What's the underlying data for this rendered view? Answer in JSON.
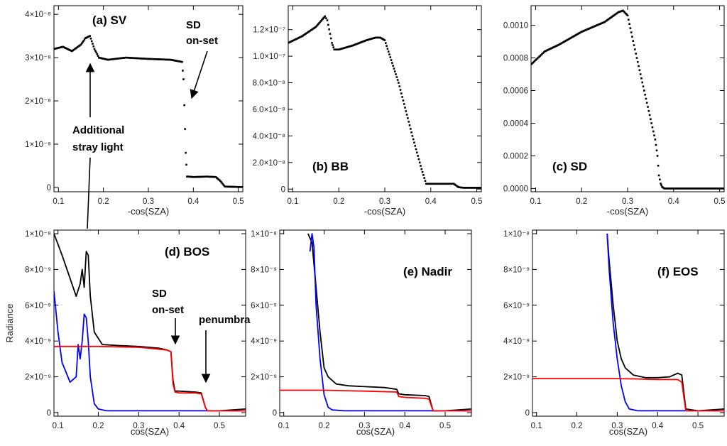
{
  "figure": {
    "ylabel_shared": "Radiance"
  },
  "annotations": [
    {
      "id": "sd-onset-top",
      "text": [
        "SD",
        "on-set"
      ]
    },
    {
      "id": "stray-light",
      "text": [
        "Additional",
        "stray light"
      ]
    },
    {
      "id": "sd-onset-bottom",
      "text": [
        "SD",
        "on-set"
      ]
    },
    {
      "id": "penumbra",
      "text": [
        "penumbra"
      ]
    }
  ],
  "chart_data": [
    {
      "type": "scatter",
      "panel": "a",
      "title": "(a) SV",
      "xlabel": "-cos(SZA)",
      "xlim": [
        0.09,
        0.51
      ],
      "ylim": [
        -1e-09,
        4.2e-08
      ],
      "xticks": [
        0.1,
        0.2,
        0.3,
        0.4,
        0.5
      ],
      "xticklabels": [
        "0.1",
        "0.2",
        "0.3",
        "0.4",
        "0.5"
      ],
      "yticks": [
        0,
        1e-08,
        2e-08,
        3e-08,
        4e-08
      ],
      "yticklabels": [
        "0",
        "1×10⁻⁸",
        "2×10⁻⁸",
        "3×10⁻⁸",
        "4×10⁻⁸"
      ],
      "series": [
        {
          "color": "#000000",
          "x": [
            0.09,
            0.11,
            0.13,
            0.15,
            0.16,
            0.17,
            0.18,
            0.19,
            0.21,
            0.25,
            0.3,
            0.35,
            0.375,
            0.378,
            0.38,
            0.383,
            0.386,
            0.39,
            0.4,
            0.43,
            0.45,
            0.46,
            0.47,
            0.5,
            0.51
          ],
          "y": [
            3.2e-08,
            3.25e-08,
            3.15e-08,
            3.3e-08,
            3.45e-08,
            3.5e-08,
            3.2e-08,
            3e-08,
            2.95e-08,
            3e-08,
            2.97e-08,
            2.95e-08,
            2.9e-08,
            2.5e-08,
            1.9e-08,
            8e-09,
            2.5e-09,
            2.5e-09,
            2.4e-09,
            2.5e-09,
            2.4e-09,
            1.5e-09,
            2e-10,
            1e-10,
            1e-10
          ]
        }
      ]
    },
    {
      "type": "scatter",
      "panel": "b",
      "title": "(b) BB",
      "xlabel": "-cos(SZA)",
      "xlim": [
        0.09,
        0.51
      ],
      "ylim": [
        -2e-09,
        1.38e-07
      ],
      "xticks": [
        0.1,
        0.2,
        0.3,
        0.4,
        0.5
      ],
      "xticklabels": [
        "0.1",
        "0.2",
        "0.3",
        "0.4",
        "0.5"
      ],
      "yticks": [
        0,
        2e-08,
        4e-08,
        6e-08,
        8e-08,
        1e-07,
        1.2e-07
      ],
      "yticklabels": [
        "0",
        "2.0×10⁻⁸",
        "4.0×10⁻⁸",
        "6.0×10⁻⁸",
        "8.0×10⁻⁸",
        "1.0×10⁻⁷",
        "1.2×10⁻⁷"
      ],
      "series": [
        {
          "color": "#000000",
          "x": [
            0.09,
            0.12,
            0.15,
            0.165,
            0.17,
            0.175,
            0.185,
            0.19,
            0.2,
            0.23,
            0.26,
            0.28,
            0.29,
            0.3,
            0.33,
            0.36,
            0.38,
            0.39,
            0.4,
            0.45,
            0.46,
            0.47,
            0.51
          ],
          "y": [
            1.1e-07,
            1.15e-07,
            1.22e-07,
            1.28e-07,
            1.3e-07,
            1.27e-07,
            1.1e-07,
            1.05e-07,
            1.05e-07,
            1.08e-07,
            1.12e-07,
            1.14e-07,
            1.14e-07,
            1.12e-07,
            8e-08,
            4e-08,
            1.5e-08,
            4e-09,
            4e-09,
            4e-09,
            1.5e-09,
            1e-09,
            1e-09
          ]
        }
      ]
    },
    {
      "type": "scatter",
      "panel": "c",
      "title": "(c) SD",
      "xlabel": "-cos(SZA)",
      "xlim": [
        0.09,
        0.51
      ],
      "ylim": [
        -2e-05,
        0.00112
      ],
      "xticks": [
        0.1,
        0.2,
        0.3,
        0.4,
        0.5
      ],
      "xticklabels": [
        "0.1",
        "0.2",
        "0.3",
        "0.4",
        "0.5"
      ],
      "yticks": [
        0,
        0.0002,
        0.0004,
        0.0006,
        0.0008,
        0.001
      ],
      "yticklabels": [
        "0.0000",
        "0.0002",
        "0.0004",
        "0.0006",
        "0.0008",
        "0.0010"
      ],
      "series": [
        {
          "color": "#000000",
          "x": [
            0.09,
            0.12,
            0.15,
            0.2,
            0.25,
            0.28,
            0.29,
            0.3,
            0.32,
            0.34,
            0.36,
            0.365,
            0.368,
            0.372,
            0.375,
            0.38,
            0.4,
            0.45,
            0.51
          ],
          "y": [
            0.00076,
            0.00084,
            0.00088,
            0.00096,
            0.00102,
            0.00108,
            0.00109,
            0.00106,
            0.0008,
            0.00055,
            0.0003,
            0.0002,
            8e-05,
            3e-05,
            1e-05,
            0.0,
            0.0,
            0.0,
            0.0
          ]
        }
      ]
    },
    {
      "type": "line",
      "panel": "d",
      "title": "(d) BOS",
      "xlabel": "cos(SZA)",
      "ylabel": "Radiance",
      "xlim": [
        0.09,
        0.565
      ],
      "ylim": [
        -2e-10,
        1.02e-08
      ],
      "xticks": [
        0.1,
        0.2,
        0.3,
        0.4,
        0.5
      ],
      "xticklabels": [
        "0.1",
        "0.2",
        "0.3",
        "0.4",
        "0.5"
      ],
      "yticks": [
        0,
        2e-09,
        4e-09,
        6e-09,
        8e-09,
        1e-08
      ],
      "yticklabels": [
        "0",
        "2×10⁻⁹",
        "4×10⁻⁹",
        "6×10⁻⁹",
        "8×10⁻⁹",
        "1×10⁻⁸"
      ],
      "series": [
        {
          "color": "#000000",
          "x": [
            0.09,
            0.11,
            0.13,
            0.145,
            0.155,
            0.16,
            0.165,
            0.17,
            0.175,
            0.18,
            0.19,
            0.21,
            0.25,
            0.3,
            0.35,
            0.37,
            0.38,
            0.385,
            0.39,
            0.4,
            0.44,
            0.455,
            0.465,
            0.47,
            0.5,
            0.565
          ],
          "y": [
            1e-08,
            8.8e-09,
            7.5e-09,
            6.5e-09,
            7.2e-09,
            8e-09,
            7e-09,
            9e-09,
            8.8e-09,
            6.5e-09,
            4.5e-09,
            3.8e-09,
            3.75e-09,
            3.7e-09,
            3.6e-09,
            3.5e-09,
            3.4e-09,
            1.8e-09,
            1.2e-09,
            1.2e-09,
            1.15e-09,
            1.1e-09,
            3e-10,
            1e-10,
            1e-10,
            2e-10
          ]
        },
        {
          "color": "#0000ff",
          "x": [
            0.09,
            0.1,
            0.11,
            0.13,
            0.145,
            0.15,
            0.155,
            0.16,
            0.165,
            0.17,
            0.175,
            0.18,
            0.19,
            0.2,
            0.22,
            0.25,
            0.3,
            0.4,
            0.565
          ],
          "y": [
            6.8e-09,
            4.5e-09,
            2.8e-09,
            1.7e-09,
            2e-09,
            3.8e-09,
            3e-09,
            4e-09,
            5.5e-09,
            5.3e-09,
            4e-09,
            2e-09,
            5e-10,
            2e-10,
            1e-10,
            1e-10,
            1e-10,
            1e-10,
            1e-10
          ]
        },
        {
          "color": "#ff0000",
          "x": [
            0.09,
            0.2,
            0.3,
            0.37,
            0.38,
            0.385,
            0.39,
            0.4,
            0.44,
            0.455,
            0.465,
            0.47,
            0.5,
            0.565
          ],
          "y": [
            3.7e-09,
            3.7e-09,
            3.65e-09,
            3.5e-09,
            3.4e-09,
            1.6e-09,
            1.15e-09,
            1.1e-09,
            1.1e-09,
            1.05e-09,
            3e-10,
            1e-10,
            1e-10,
            1e-10
          ]
        }
      ]
    },
    {
      "type": "line",
      "panel": "e",
      "title": "(e) Nadir",
      "xlabel": "cos(SZA)",
      "xlim": [
        0.09,
        0.565
      ],
      "ylim": [
        -2e-10,
        1.02e-08
      ],
      "xticks": [
        0.1,
        0.2,
        0.3,
        0.4,
        0.5
      ],
      "xticklabels": [
        "0.1",
        "0.2",
        "0.3",
        "0.4",
        "0.5"
      ],
      "yticks": [
        0,
        2e-09,
        4e-09,
        6e-09,
        8e-09,
        1e-08
      ],
      "yticklabels": [
        "0",
        "2×10⁻⁹",
        "4×10⁻⁹",
        "6×10⁻⁹",
        "8×10⁻⁹",
        "1×10⁻⁸"
      ],
      "series": [
        {
          "color": "#000000",
          "x": [
            0.16,
            0.17,
            0.18,
            0.19,
            0.2,
            0.21,
            0.23,
            0.26,
            0.3,
            0.35,
            0.38,
            0.385,
            0.4,
            0.45,
            0.46,
            0.47,
            0.5,
            0.565
          ],
          "y": [
            1e-08,
            9.5e-09,
            7e-09,
            4.5e-09,
            2.5e-09,
            2e-09,
            1.6e-09,
            1.5e-09,
            1.45e-09,
            1.4e-09,
            1.3e-09,
            1.05e-09,
            1e-09,
            9.5e-10,
            9e-10,
            1e-10,
            1e-10,
            2e-10
          ]
        },
        {
          "color": "#0000ff",
          "x": [
            0.165,
            0.17,
            0.175,
            0.18,
            0.19,
            0.2,
            0.21,
            0.22,
            0.25,
            0.3,
            0.4,
            0.565
          ],
          "y": [
            9e-09,
            1e-08,
            9.2e-09,
            6e-09,
            3e-09,
            1e-09,
            3e-10,
            1.5e-10,
            1e-10,
            1e-10,
            1e-10,
            1e-10
          ]
        },
        {
          "color": "#ff0000",
          "x": [
            0.09,
            0.2,
            0.3,
            0.38,
            0.385,
            0.4,
            0.45,
            0.46,
            0.47,
            0.5,
            0.565
          ],
          "y": [
            1.25e-09,
            1.25e-09,
            1.2e-09,
            1.15e-09,
            9e-10,
            8.5e-10,
            8e-10,
            7.5e-10,
            1e-10,
            1e-10,
            1e-10
          ]
        }
      ]
    },
    {
      "type": "line",
      "panel": "f",
      "title": "(f) EOS",
      "xlabel": "cos(SZA)",
      "xlim": [
        0.09,
        0.565
      ],
      "ylim": [
        -2e-10,
        1.02e-08
      ],
      "xticks": [
        0.1,
        0.2,
        0.3,
        0.4,
        0.5
      ],
      "xticklabels": [
        "0.1",
        "0.2",
        "0.3",
        "0.4",
        "0.5"
      ],
      "yticks": [
        0,
        2e-09,
        4e-09,
        6e-09,
        8e-09,
        1e-08
      ],
      "yticklabels": [
        "0",
        "2×10⁻⁹",
        "4×10⁻⁹",
        "6×10⁻⁹",
        "8×10⁻⁹",
        "1×10⁻⁸"
      ],
      "series": [
        {
          "color": "#000000",
          "x": [
            0.275,
            0.28,
            0.29,
            0.3,
            0.31,
            0.32,
            0.34,
            0.37,
            0.4,
            0.43,
            0.45,
            0.46,
            0.47,
            0.5,
            0.565
          ],
          "y": [
            1e-08,
            8.5e-09,
            6e-09,
            4e-09,
            3e-09,
            2.5e-09,
            2.1e-09,
            1.95e-09,
            1.95e-09,
            2e-09,
            2.2e-09,
            2.1e-09,
            2e-10,
            1e-10,
            2e-10
          ]
        },
        {
          "color": "#0000ff",
          "x": [
            0.275,
            0.28,
            0.29,
            0.3,
            0.31,
            0.32,
            0.33,
            0.35,
            0.4,
            0.565
          ],
          "y": [
            1e-08,
            8e-09,
            5e-09,
            3e-09,
            1.5e-09,
            6e-10,
            2e-10,
            1e-10,
            1e-10,
            1e-10
          ]
        },
        {
          "color": "#ff0000",
          "x": [
            0.09,
            0.2,
            0.3,
            0.35,
            0.4,
            0.43,
            0.45,
            0.46,
            0.47,
            0.5,
            0.565
          ],
          "y": [
            1.9e-09,
            1.9e-09,
            1.9e-09,
            1.88e-09,
            1.85e-09,
            1.85e-09,
            1.85e-09,
            1.7e-09,
            1e-10,
            1e-10,
            1e-10
          ]
        }
      ]
    }
  ]
}
